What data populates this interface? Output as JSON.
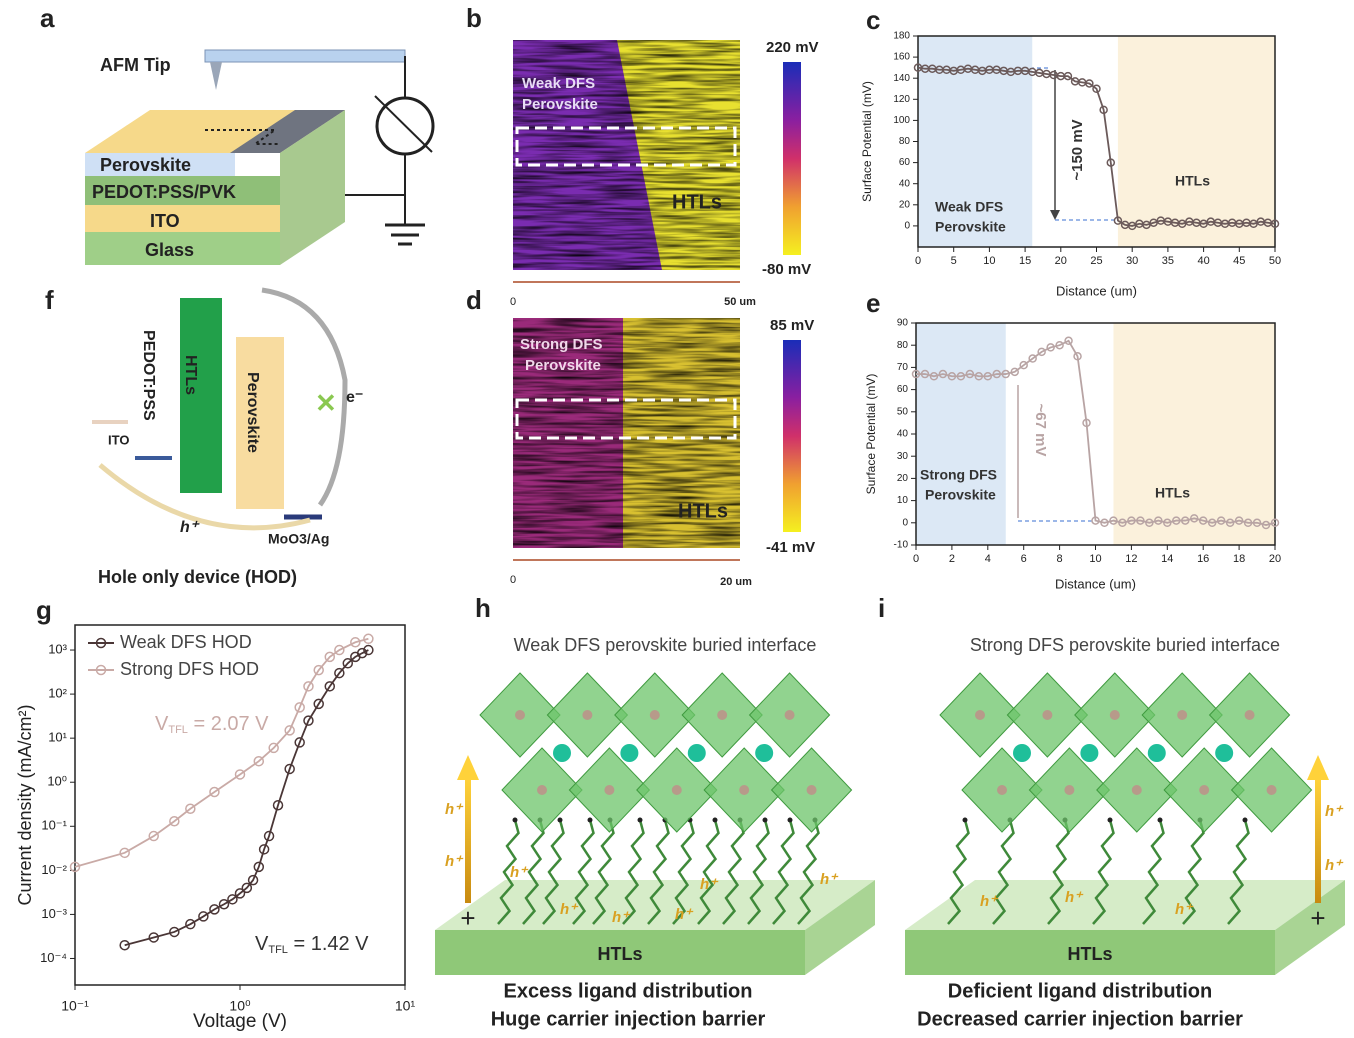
{
  "panels": {
    "a": {
      "label": "a",
      "tip": "AFM Tip",
      "layers": [
        "Perovskite",
        "PEDOT:PSS/PVK",
        "ITO",
        "Glass"
      ]
    },
    "b": {
      "label": "b",
      "sample": [
        "Weak DFS",
        "Perovskite"
      ],
      "htl": "HTLs",
      "colorbar_max": "220 mV",
      "colorbar_min": "-80 mV",
      "scale_start": "0",
      "scale_end": "50 um"
    },
    "d": {
      "label": "d",
      "sample": [
        "Strong DFS",
        "Perovskite"
      ],
      "htl": "HTLs",
      "colorbar_max": "85 mV",
      "colorbar_min": "-41 mV",
      "scale_start": "0",
      "scale_end": "20 um"
    },
    "f": {
      "label": "f",
      "levels": [
        "PEDOT:PSS",
        "HTLs",
        "Perovskite",
        "ITO",
        "MoO3/Ag"
      ],
      "electron": "e⁻",
      "hole": "h⁺",
      "caption": "Hole only device (HOD)"
    },
    "h": {
      "label": "h",
      "title": "Weak DFS perovskite buried interface",
      "substrate": "HTLs",
      "caption": [
        "Excess ligand distribution",
        "Huge carrier injection barrier"
      ],
      "carrier": "h⁺",
      "terminal": "+"
    },
    "i": {
      "label": "i",
      "title": "Strong DFS perovskite buried interface",
      "substrate": "HTLs",
      "caption": [
        "Deficient ligand distribution",
        "Decreased carrier injection barrier"
      ],
      "carrier": "h⁺",
      "terminal": "+"
    }
  },
  "chart_data": [
    {
      "type": "line",
      "panel_label": "c",
      "xlabel": "Distance (um)",
      "ylabel": "Surface Potential (mV)",
      "x": [
        0,
        1,
        2,
        3,
        4,
        5,
        6,
        7,
        8,
        9,
        10,
        11,
        12,
        13,
        14,
        15,
        16,
        17,
        18,
        19,
        20,
        21,
        22,
        23,
        24,
        25,
        26,
        27,
        28,
        29,
        30,
        31,
        32,
        33,
        34,
        35,
        36,
        37,
        38,
        39,
        40,
        41,
        42,
        43,
        44,
        45,
        46,
        47,
        48,
        49,
        50
      ],
      "values": [
        150,
        149,
        149,
        148,
        148,
        147,
        148,
        149,
        148,
        147,
        148,
        148,
        147,
        146,
        147,
        147,
        146,
        145,
        144,
        143,
        142,
        142,
        137,
        136,
        135,
        130,
        110,
        60,
        5,
        1,
        0,
        2,
        1,
        3,
        5,
        4,
        3,
        2,
        4,
        3,
        2,
        4,
        3,
        2,
        3,
        2,
        3,
        2,
        4,
        3,
        2
      ],
      "color": "#6b5a5a",
      "xlim": [
        0,
        50
      ],
      "xticks": [
        0,
        5,
        10,
        15,
        20,
        25,
        30,
        35,
        40,
        45,
        50
      ],
      "ylim": [
        -20,
        180
      ],
      "yticks": [
        0,
        20,
        40,
        60,
        80,
        100,
        120,
        140,
        160,
        180
      ],
      "regions": [
        {
          "x": [
            0,
            16
          ],
          "color": "#dce8f5"
        },
        {
          "x": [
            28,
            50
          ],
          "color": "#fbf1dc"
        }
      ],
      "annotation": "~150 mV",
      "region_labels": [
        "Weak DFS",
        "Perovskite",
        "HTLs"
      ]
    },
    {
      "type": "line",
      "panel_label": "e",
      "xlabel": "Distance (um)",
      "ylabel": "Surface Potential (mV)",
      "x": [
        0,
        0.5,
        1,
        1.5,
        2,
        2.5,
        3,
        3.5,
        4,
        4.5,
        5,
        5.5,
        6,
        6.5,
        7,
        7.5,
        8,
        8.5,
        9,
        9.5,
        10,
        10.5,
        11,
        11.5,
        12,
        12.5,
        13,
        13.5,
        14,
        14.5,
        15,
        15.5,
        16,
        16.5,
        17,
        17.5,
        18,
        18.5,
        19,
        19.5,
        20
      ],
      "values": [
        67,
        67,
        66,
        67,
        66,
        66,
        67,
        66,
        66,
        67,
        67,
        68,
        71,
        74,
        77,
        79,
        80,
        82,
        75,
        45,
        1,
        0,
        1,
        0,
        1,
        1,
        0,
        1,
        0,
        1,
        1,
        2,
        1,
        0,
        1,
        0,
        1,
        0,
        0,
        -1,
        0
      ],
      "color": "#b8a4a4",
      "xlim": [
        0,
        20
      ],
      "xticks": [
        0,
        2,
        4,
        6,
        8,
        10,
        12,
        14,
        16,
        18,
        20
      ],
      "ylim": [
        -10,
        90
      ],
      "yticks": [
        -10,
        0,
        10,
        20,
        30,
        40,
        50,
        60,
        70,
        80,
        90
      ],
      "regions": [
        {
          "x": [
            0,
            5
          ],
          "color": "#dce8f5"
        },
        {
          "x": [
            11,
            20
          ],
          "color": "#fbf1dc"
        }
      ],
      "annotation": "~67 mV",
      "region_labels": [
        "Strong DFS",
        "Perovskite",
        "HTLs"
      ]
    },
    {
      "type": "line",
      "panel_label": "g",
      "xlabel": "Voltage (V)",
      "ylabel": "Current density (mA/cm²)",
      "log_x": true,
      "log_y": true,
      "xlim": [
        0.1,
        10
      ],
      "xticks": [
        {
          "value": 0.1,
          "label": "10⁻¹"
        },
        {
          "value": 1,
          "label": "10⁰"
        },
        {
          "value": 10,
          "label": "10¹"
        }
      ],
      "ylim": [
        2.5e-05,
        3700
      ],
      "yticks": [
        {
          "value": 0.0001,
          "label": "10⁻⁴"
        },
        {
          "value": 0.001,
          "label": "10⁻³"
        },
        {
          "value": 0.01,
          "label": "10⁻²"
        },
        {
          "value": 0.1,
          "label": "10⁻¹"
        },
        {
          "value": 1,
          "label": "10⁰"
        },
        {
          "value": 10,
          "label": "10¹"
        },
        {
          "value": 100,
          "label": "10²"
        },
        {
          "value": 1000,
          "label": "10³"
        }
      ],
      "series": [
        {
          "name": "Weak DFS HOD",
          "color": "#4a3636",
          "x": [
            0.2,
            0.3,
            0.4,
            0.5,
            0.6,
            0.7,
            0.8,
            0.9,
            1.0,
            1.1,
            1.2,
            1.3,
            1.4,
            1.5,
            1.7,
            2.0,
            2.3,
            2.6,
            3.0,
            3.5,
            4.0,
            4.5,
            5.0,
            5.5,
            6.0
          ],
          "values": [
            0.0002,
            0.0003,
            0.0004,
            0.0006,
            0.0009,
            0.0013,
            0.0017,
            0.0022,
            0.003,
            0.004,
            0.006,
            0.012,
            0.03,
            0.06,
            0.3,
            2,
            8,
            25,
            60,
            150,
            300,
            500,
            700,
            850,
            1000
          ]
        },
        {
          "name": "Strong DFS HOD",
          "color": "#c9aaa6",
          "x": [
            0.1,
            0.2,
            0.3,
            0.4,
            0.5,
            0.7,
            1.0,
            1.3,
            1.6,
            2.0,
            2.3,
            2.6,
            3.0,
            3.5,
            4.0,
            5.0,
            6.0
          ],
          "values": [
            0.012,
            0.025,
            0.06,
            0.13,
            0.25,
            0.6,
            1.5,
            3,
            6,
            15,
            50,
            150,
            350,
            700,
            1000,
            1500,
            1800
          ]
        }
      ],
      "annotations": [
        {
          "main": "V",
          "sub": "TFL",
          "rest": " = 2.07 V",
          "color": "#c9aaa6"
        },
        {
          "main": "V",
          "sub": "TFL",
          "rest": " = 1.42 V",
          "color": "#333333"
        }
      ]
    }
  ]
}
